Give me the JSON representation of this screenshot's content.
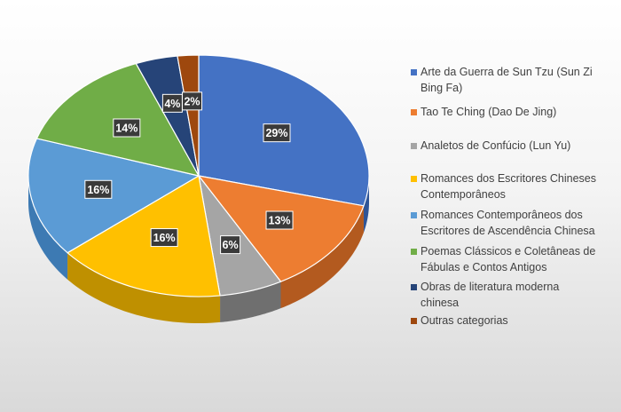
{
  "chart_data": {
    "type": "pie",
    "title": "",
    "legend_position": "right",
    "series": [
      {
        "values": [
          29,
          13,
          6,
          16,
          16,
          14,
          4,
          2
        ],
        "data_labels": [
          "29%",
          "13%",
          "6%",
          "16%",
          "16%",
          "14%",
          "4%",
          "2%"
        ]
      }
    ],
    "categories": [
      "Arte da Guerra de Sun Tzu (Sun Zi Bing Fa)",
      "Tao Te Ching (Dao De Jing)",
      "Analetos de Confúcio (Lun Yu)",
      "Romances dos Escritores Chineses Contemporâneos",
      "Romances Contemporâneos dos Escritores de Ascendência Chinesa",
      "Poemas Clássicos e Coletâneas de Fábulas e Contos Antigos",
      "Obras de literatura moderna chinesa",
      "Outras categorias"
    ],
    "legend_lines": [
      [
        "Arte da Guerra de Sun Tzu (Sun Zi",
        "Bing Fa)"
      ],
      [
        "Tao Te Ching (Dao De Jing)"
      ],
      [
        "Analetos de Confúcio (Lun Yu)"
      ],
      [
        "Romances dos Escritores Chineses",
        "Contemporâneos"
      ],
      [
        "Romances Contemporâneos dos",
        "Escritores de Ascendência Chinesa"
      ],
      [
        "Poemas Clássicos e Coletâneas de",
        "Fábulas e Contos Antigos"
      ],
      [
        "Obras de literatura moderna",
        "chinesa"
      ],
      [
        "Outras categorias"
      ]
    ],
    "colors": [
      "#4472C4",
      "#ED7D31",
      "#A5A5A5",
      "#FFC000",
      "#5B9BD5",
      "#70AD47",
      "#264478",
      "#9E480E"
    ],
    "side_colors": [
      "#2F5597",
      "#B35A1F",
      "#6F6F6F",
      "#BF9000",
      "#3D7AB3",
      "#4E7F30",
      "#1A2F55",
      "#6E3208"
    ]
  }
}
